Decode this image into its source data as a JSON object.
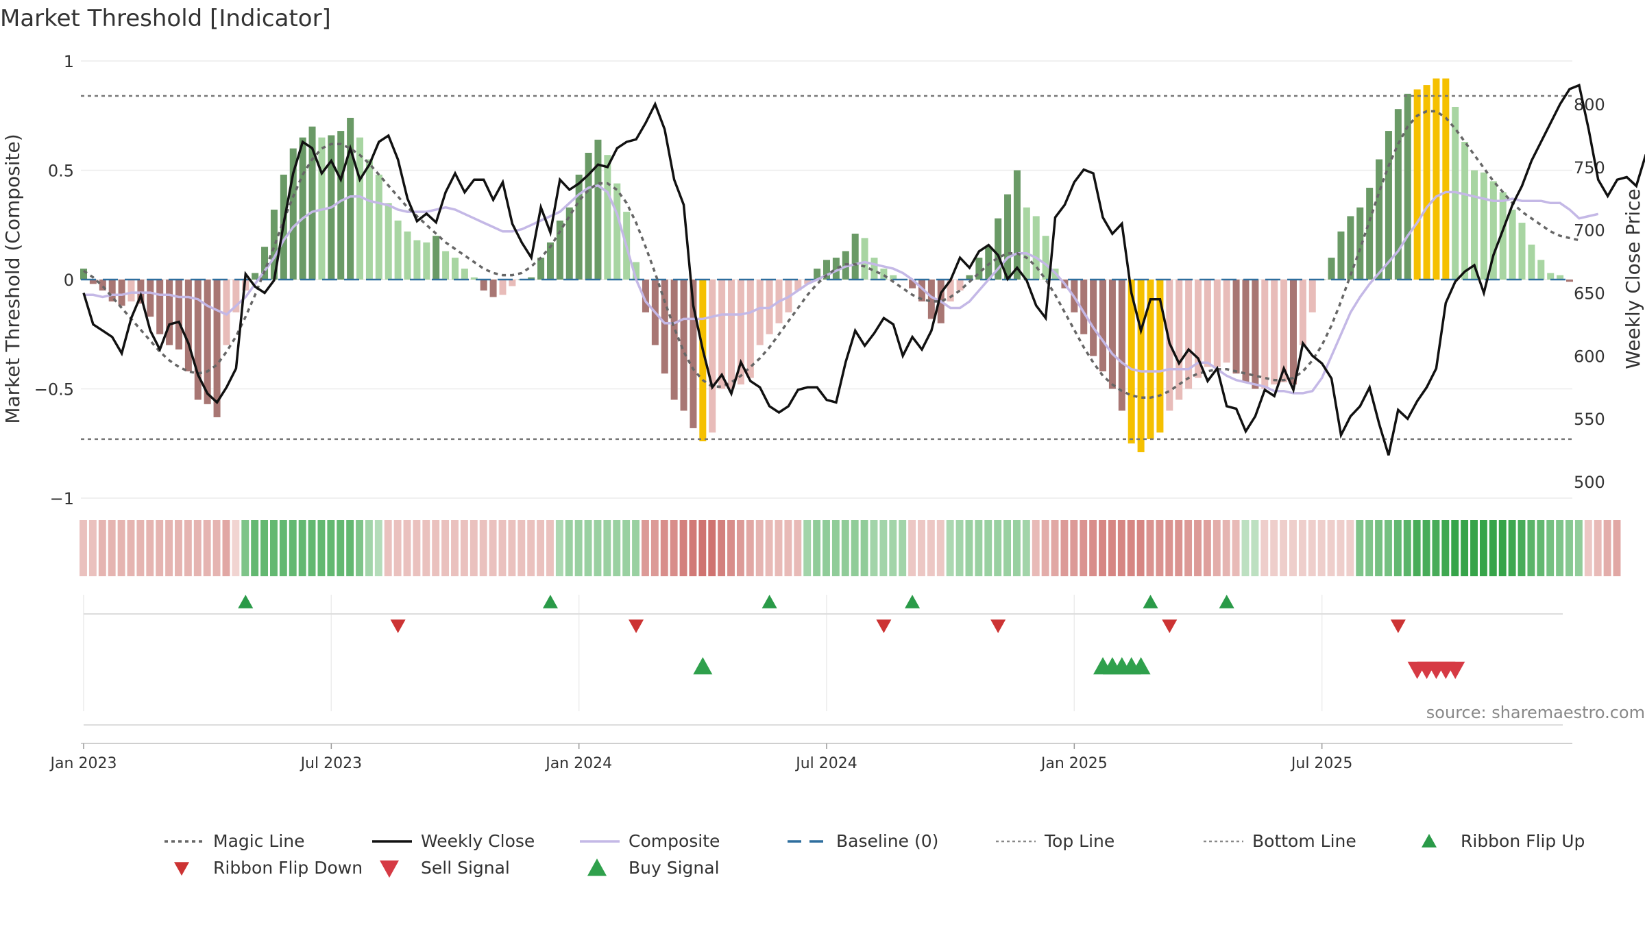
{
  "chart_data": {
    "type": "bar",
    "title": "Market Threshold [Indicator]",
    "ylabel": "Market Threshold (Composite)",
    "y2label": "Weekly Close Price",
    "ylim": [
      -1,
      1
    ],
    "y2lim": [
      500,
      820
    ],
    "yticks": [
      "1",
      "0.5",
      "0",
      "−0.5",
      "−1"
    ],
    "y2ticks": [
      "800",
      "750",
      "700",
      "650",
      "600",
      "550",
      "500"
    ],
    "xticks": [
      "Jan 2023",
      "Jul 2023",
      "Jan 2024",
      "Jul 2024",
      "Jan 2025",
      "Jul 2025"
    ],
    "xtick_weeks": [
      0,
      26,
      52,
      78,
      104,
      130
    ],
    "top_line": 0.84,
    "bottom_line": -0.73,
    "baseline": 0,
    "source": "source: sharemaestro.com",
    "colors": {
      "dark_green": "#6a9a66",
      "light_green": "#a8d5a2",
      "dark_red": "#a87673",
      "light_red": "#e8bcb9",
      "gold": "#f5c000",
      "weekly_close": "#111111",
      "composite": "#c4b8e6",
      "magic_line": "#666666",
      "baseline": "#2e6e9e",
      "signal_up": "#2a9a48",
      "signal_down": "#cc3333"
    },
    "series": [
      {
        "name": "Composite Bars",
        "values": [
          0.05,
          -0.02,
          -0.05,
          -0.1,
          -0.12,
          -0.1,
          -0.11,
          -0.17,
          -0.25,
          -0.3,
          -0.32,
          -0.42,
          -0.55,
          -0.57,
          -0.63,
          -0.3,
          -0.15,
          -0.05,
          0.03,
          0.15,
          0.32,
          0.48,
          0.6,
          0.65,
          0.7,
          0.65,
          0.66,
          0.68,
          0.74,
          0.65,
          0.55,
          0.48,
          0.35,
          0.27,
          0.22,
          0.18,
          0.17,
          0.2,
          0.13,
          0.1,
          0.05,
          0.01,
          -0.05,
          -0.08,
          -0.07,
          -0.03,
          0.0,
          0.01,
          0.1,
          0.17,
          0.27,
          0.33,
          0.48,
          0.58,
          0.64,
          0.57,
          0.44,
          0.31,
          0.08,
          -0.15,
          -0.3,
          -0.43,
          -0.55,
          -0.6,
          -0.68,
          -0.74,
          -0.7,
          -0.5,
          -0.5,
          -0.48,
          -0.45,
          -0.3,
          -0.25,
          -0.2,
          -0.15,
          -0.05,
          -0.02,
          0.05,
          0.09,
          0.1,
          0.13,
          0.21,
          0.19,
          0.1,
          0.05,
          0.02,
          0.0,
          -0.04,
          -0.1,
          -0.18,
          -0.2,
          -0.1,
          -0.05,
          0.02,
          0.1,
          0.15,
          0.28,
          0.39,
          0.5,
          0.33,
          0.29,
          0.2,
          0.05,
          -0.04,
          -0.15,
          -0.25,
          -0.35,
          -0.42,
          -0.5,
          -0.6,
          -0.75,
          -0.79,
          -0.73,
          -0.7,
          -0.6,
          -0.55,
          -0.5,
          -0.45,
          -0.4,
          -0.4,
          -0.38,
          -0.43,
          -0.47,
          -0.5,
          -0.5,
          -0.48,
          -0.47,
          -0.48,
          -0.3,
          -0.15,
          0.0,
          0.1,
          0.22,
          0.29,
          0.33,
          0.42,
          0.55,
          0.68,
          0.78,
          0.85,
          0.87,
          0.89,
          0.92,
          0.92,
          0.79,
          0.63,
          0.5,
          0.49,
          0.45,
          0.4,
          0.32,
          0.26,
          0.16,
          0.09,
          0.03,
          0.02,
          -0.01
        ]
      },
      {
        "name": "Weekly Close",
        "values": [
          650,
          625,
          620,
          615,
          602,
          630,
          648,
          620,
          605,
          625,
          627,
          610,
          585,
          570,
          563,
          575,
          590,
          665,
          655,
          650,
          660,
          705,
          745,
          770,
          765,
          745,
          755,
          740,
          765,
          740,
          752,
          770,
          775,
          756,
          725,
          707,
          713,
          706,
          730,
          745,
          730,
          740,
          740,
          724,
          738,
          705,
          690,
          678,
          718,
          698,
          740,
          732,
          737,
          744,
          752,
          750,
          765,
          770,
          772,
          785,
          800,
          780,
          740,
          720,
          640,
          605,
          575,
          585,
          570,
          595,
          580,
          575,
          560,
          555,
          560,
          573,
          575,
          575,
          565,
          563,
          595,
          620,
          608,
          618,
          630,
          625,
          600,
          615,
          605,
          620,
          650,
          660,
          678,
          670,
          683,
          688,
          680,
          661,
          670,
          660,
          640,
          630,
          710,
          720,
          738,
          748,
          745,
          710,
          697,
          705,
          650,
          620,
          645,
          645,
          610,
          594,
          605,
          598,
          580,
          590,
          560,
          558,
          540,
          552,
          573,
          568,
          590,
          573,
          610,
          600,
          594,
          582,
          537,
          552,
          560,
          575,
          546,
          521,
          557,
          550,
          564,
          575,
          590,
          642,
          659,
          667,
          672,
          650,
          680,
          700,
          720,
          735,
          755,
          770,
          785,
          800,
          812,
          815,
          780,
          740,
          727,
          740,
          742,
          735,
          760,
          723,
          730,
          715,
          712,
          700,
          710,
          708,
          705
        ]
      },
      {
        "name": "Composite",
        "values": [
          -0.07,
          -0.07,
          -0.08,
          -0.07,
          -0.07,
          -0.06,
          -0.06,
          -0.06,
          -0.07,
          -0.07,
          -0.08,
          -0.08,
          -0.09,
          -0.12,
          -0.14,
          -0.16,
          -0.12,
          -0.08,
          -0.02,
          0.04,
          0.1,
          0.18,
          0.24,
          0.28,
          0.31,
          0.32,
          0.33,
          0.36,
          0.38,
          0.38,
          0.36,
          0.35,
          0.34,
          0.32,
          0.31,
          0.31,
          0.31,
          0.32,
          0.33,
          0.32,
          0.3,
          0.28,
          0.26,
          0.24,
          0.22,
          0.22,
          0.23,
          0.25,
          0.27,
          0.29,
          0.31,
          0.35,
          0.39,
          0.42,
          0.43,
          0.4,
          0.3,
          0.15,
          0.0,
          -0.1,
          -0.15,
          -0.2,
          -0.2,
          -0.18,
          -0.18,
          -0.18,
          -0.17,
          -0.16,
          -0.16,
          -0.16,
          -0.15,
          -0.13,
          -0.13,
          -0.1,
          -0.08,
          -0.05,
          -0.02,
          0.0,
          0.02,
          0.04,
          0.06,
          0.07,
          0.08,
          0.07,
          0.06,
          0.05,
          0.03,
          0.0,
          -0.04,
          -0.08,
          -0.1,
          -0.13,
          -0.13,
          -0.1,
          -0.05,
          0.0,
          0.05,
          0.1,
          0.12,
          0.12,
          0.1,
          0.07,
          0.03,
          -0.02,
          -0.08,
          -0.15,
          -0.22,
          -0.28,
          -0.34,
          -0.38,
          -0.41,
          -0.42,
          -0.42,
          -0.42,
          -0.41,
          -0.41,
          -0.41,
          -0.38,
          -0.38,
          -0.41,
          -0.44,
          -0.46,
          -0.47,
          -0.48,
          -0.49,
          -0.51,
          -0.51,
          -0.52,
          -0.52,
          -0.51,
          -0.45,
          -0.35,
          -0.25,
          -0.15,
          -0.08,
          -0.02,
          0.03,
          0.08,
          0.13,
          0.2,
          0.26,
          0.33,
          0.38,
          0.4,
          0.4,
          0.39,
          0.38,
          0.37,
          0.36,
          0.36,
          0.37,
          0.36,
          0.36,
          0.36,
          0.35,
          0.35,
          0.32,
          0.28,
          0.29,
          0.3
        ]
      },
      {
        "name": "Magic Line",
        "values": [
          0.04,
          0.01,
          -0.03,
          -0.08,
          -0.13,
          -0.18,
          -0.23,
          -0.28,
          -0.33,
          -0.37,
          -0.4,
          -0.42,
          -0.43,
          -0.42,
          -0.39,
          -0.33,
          -0.26,
          -0.17,
          -0.07,
          0.04,
          0.15,
          0.27,
          0.38,
          0.48,
          0.55,
          0.6,
          0.62,
          0.62,
          0.6,
          0.57,
          0.53,
          0.48,
          0.43,
          0.38,
          0.33,
          0.29,
          0.25,
          0.21,
          0.17,
          0.14,
          0.11,
          0.08,
          0.05,
          0.03,
          0.02,
          0.02,
          0.03,
          0.06,
          0.1,
          0.15,
          0.22,
          0.29,
          0.36,
          0.41,
          0.44,
          0.44,
          0.41,
          0.35,
          0.26,
          0.15,
          0.03,
          -0.1,
          -0.22,
          -0.33,
          -0.41,
          -0.46,
          -0.49,
          -0.49,
          -0.47,
          -0.44,
          -0.4,
          -0.36,
          -0.31,
          -0.25,
          -0.19,
          -0.13,
          -0.07,
          -0.02,
          0.02,
          0.05,
          0.07,
          0.07,
          0.06,
          0.04,
          0.02,
          -0.01,
          -0.04,
          -0.07,
          -0.09,
          -0.1,
          -0.1,
          -0.08,
          -0.05,
          -0.01,
          0.03,
          0.07,
          0.1,
          0.12,
          0.12,
          0.1,
          0.06,
          0.0,
          -0.07,
          -0.15,
          -0.23,
          -0.31,
          -0.38,
          -0.44,
          -0.48,
          -0.51,
          -0.53,
          -0.54,
          -0.54,
          -0.53,
          -0.51,
          -0.48,
          -0.45,
          -0.43,
          -0.42,
          -0.41,
          -0.41,
          -0.42,
          -0.43,
          -0.44,
          -0.45,
          -0.46,
          -0.46,
          -0.45,
          -0.42,
          -0.37,
          -0.3,
          -0.21,
          -0.1,
          0.02,
          0.14,
          0.27,
          0.4,
          0.52,
          0.62,
          0.7,
          0.75,
          0.77,
          0.77,
          0.74,
          0.69,
          0.63,
          0.57,
          0.51,
          0.45,
          0.4,
          0.35,
          0.31,
          0.28,
          0.25,
          0.22,
          0.2,
          0.19,
          0.18
        ]
      },
      {
        "name": "Ribbon Intensity",
        "values": [
          -0.25,
          -0.25,
          -0.35,
          -0.35,
          -0.35,
          -0.35,
          -0.35,
          -0.35,
          -0.35,
          -0.35,
          -0.35,
          -0.35,
          -0.35,
          -0.35,
          -0.35,
          -0.45,
          -0.1,
          0.55,
          0.7,
          0.7,
          0.7,
          0.7,
          0.7,
          0.7,
          0.7,
          0.7,
          0.7,
          0.7,
          0.7,
          0.55,
          0.35,
          0.25,
          -0.25,
          -0.25,
          -0.25,
          -0.25,
          -0.25,
          -0.25,
          -0.25,
          -0.25,
          -0.25,
          -0.25,
          -0.25,
          -0.25,
          -0.25,
          -0.25,
          -0.25,
          -0.25,
          -0.25,
          -0.25,
          0.3,
          0.4,
          0.4,
          0.4,
          0.4,
          0.4,
          0.4,
          0.4,
          0.4,
          -0.55,
          -0.55,
          -0.65,
          -0.65,
          -0.75,
          -0.8,
          -0.85,
          -0.85,
          -0.75,
          -0.65,
          -0.55,
          -0.45,
          -0.35,
          -0.3,
          -0.3,
          -0.3,
          -0.3,
          0.35,
          0.45,
          0.45,
          0.45,
          0.45,
          0.45,
          0.45,
          0.35,
          0.35,
          0.35,
          0.35,
          -0.2,
          -0.2,
          -0.2,
          -0.2,
          0.3,
          0.35,
          0.4,
          0.4,
          0.4,
          0.4,
          0.4,
          0.4,
          0.35,
          -0.3,
          -0.4,
          -0.45,
          -0.55,
          -0.55,
          -0.6,
          -0.65,
          -0.7,
          -0.7,
          -0.7,
          -0.7,
          -0.7,
          -0.6,
          -0.6,
          -0.6,
          -0.6,
          -0.55,
          -0.55,
          -0.5,
          -0.4,
          -0.35,
          -0.3,
          0.2,
          0.2,
          -0.15,
          -0.15,
          -0.15,
          -0.15,
          -0.15,
          -0.15,
          -0.15,
          -0.15,
          -0.15,
          -0.15,
          0.55,
          0.55,
          0.6,
          0.6,
          0.7,
          0.75,
          0.85,
          0.85,
          0.85,
          0.9,
          0.95,
          0.95,
          0.95,
          0.95,
          0.95,
          0.95,
          0.9,
          0.85,
          0.75,
          0.7,
          0.6,
          0.55,
          0.5,
          0.45,
          -0.2,
          -0.3,
          -0.4,
          -0.45
        ]
      }
    ],
    "gold_bars": [
      65,
      110,
      111,
      112,
      113,
      140,
      141,
      142,
      143
    ],
    "ribbon_flip_up_weeks": [
      17,
      49,
      72,
      87,
      112,
      120
    ],
    "ribbon_flip_down_weeks": [
      33,
      58,
      84,
      96,
      114,
      138
    ],
    "buy_signal_weeks": [
      65,
      107,
      108,
      109,
      110,
      111
    ],
    "sell_signal_weeks": [
      140,
      141,
      142,
      143,
      144
    ],
    "legend": [
      "Magic Line",
      "Weekly Close",
      "Composite",
      "Baseline (0)",
      "Top Line",
      "Bottom Line",
      "Ribbon Flip Up",
      "Ribbon Flip Down",
      "Sell Signal",
      "Buy Signal"
    ],
    "grid": true,
    "legend_position": "bottom"
  }
}
